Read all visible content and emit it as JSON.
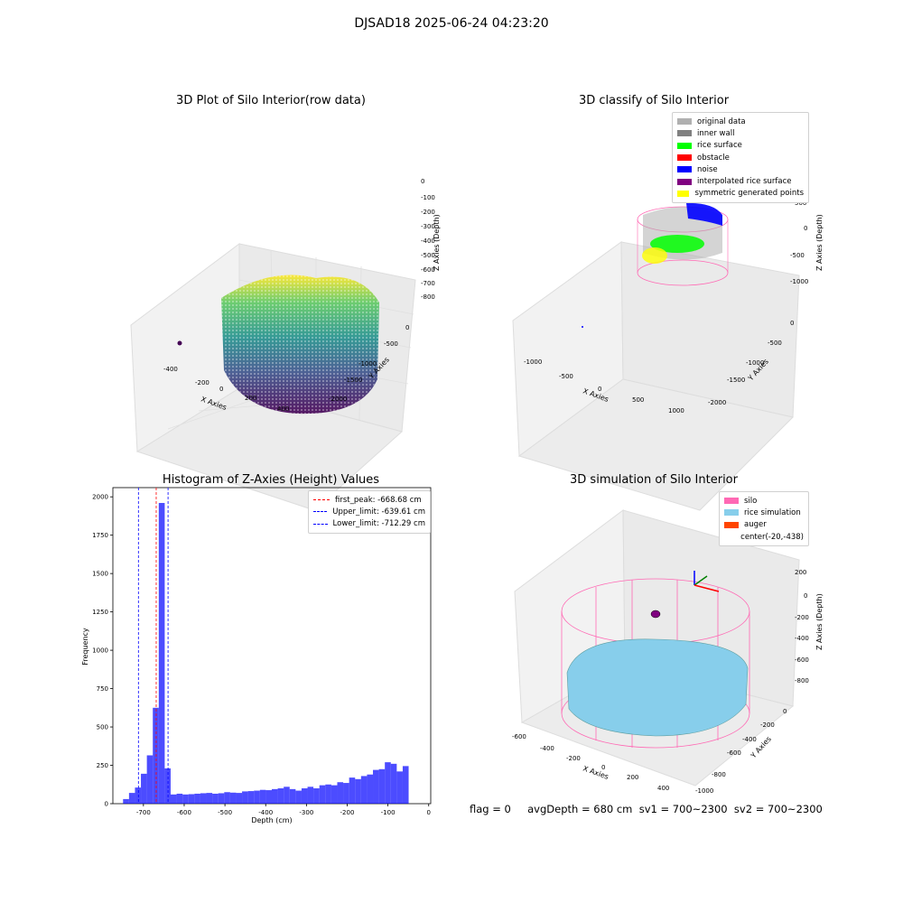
{
  "suptitle": "DJSAD18 2025-06-24 04:23:20",
  "panels": {
    "p1": {
      "title": "3D Plot of Silo Interior(row data)",
      "xlabel": "X Axies",
      "ylabel": "Y Axies",
      "zlabel": "Z Axies (Depth)",
      "xticks": [
        "-400",
        "-200",
        "0",
        "200",
        "400"
      ],
      "yticks": [
        "0",
        "-500",
        "-1000",
        "-1500",
        "-2000"
      ],
      "zticks": [
        "0",
        "-100",
        "-200",
        "-300",
        "-400",
        "-500",
        "-600",
        "-700",
        "-800"
      ]
    },
    "p2": {
      "title": "3D classify of Silo Interior",
      "xlabel": "X Axies",
      "ylabel": "Y Axies",
      "zlabel": "Z Axies (Depth)",
      "xticks": [
        "-1000",
        "-500",
        "0",
        "500",
        "1000"
      ],
      "yticks": [
        "0",
        "-500",
        "-1000",
        "-1500",
        "-2000"
      ],
      "zticks": [
        "500",
        "0",
        "-500",
        "-1000"
      ],
      "legend": [
        {
          "label": "original data",
          "color": "#b0b0b0"
        },
        {
          "label": "inner wall",
          "color": "#808080"
        },
        {
          "label": "rice surface",
          "color": "#00ff00"
        },
        {
          "label": "obstacle",
          "color": "#ff0000"
        },
        {
          "label": "noise",
          "color": "#0000ff"
        },
        {
          "label": "interpolated rice surface",
          "color": "#800080"
        },
        {
          "label": "symmetric generated points",
          "color": "#ffff00"
        }
      ]
    },
    "p4": {
      "title": "3D simulation of Silo Interior",
      "xlabel": "X Axies",
      "ylabel": "Y Axies",
      "zlabel": "Z Axies (Depth)",
      "xticks": [
        "-600",
        "-400",
        "-200",
        "0",
        "200",
        "400"
      ],
      "yticks": [
        "0",
        "-200",
        "-400",
        "-600",
        "-800",
        "-1000"
      ],
      "zticks": [
        "200",
        "0",
        "-200",
        "-400",
        "-600",
        "-800"
      ],
      "legend": [
        {
          "label": "silo",
          "color": "#ff69b4"
        },
        {
          "label": "rice simulation",
          "color": "#87ceeb"
        },
        {
          "label": "auger",
          "color": "#ff4500"
        },
        {
          "label": "center(-20,-438)",
          "color": ""
        }
      ]
    }
  },
  "flag_text": "flag = 0     avgDepth = 680 cm  sv1 = 700~2300  sv2 = 700~2300",
  "chart_data": {
    "type": "bar",
    "title": "Histogram of Z-Axies (Height) Values",
    "xlabel": "Depth (cm)",
    "ylabel": "Frequency",
    "xlim": [
      -775,
      5
    ],
    "ylim": [
      0,
      2060
    ],
    "xticks": [
      -700,
      -600,
      -500,
      -400,
      -300,
      -200,
      -100,
      0
    ],
    "yticks": [
      0,
      250,
      500,
      750,
      1000,
      1250,
      1500,
      1750,
      2000
    ],
    "bin_width": 14.6,
    "bins_start": -750,
    "values": [
      30,
      70,
      105,
      195,
      315,
      625,
      1960,
      230,
      60,
      65,
      60,
      62,
      65,
      68,
      70,
      65,
      68,
      75,
      72,
      70,
      80,
      82,
      85,
      90,
      88,
      95,
      100,
      110,
      95,
      85,
      100,
      110,
      100,
      120,
      125,
      120,
      140,
      135,
      170,
      160,
      180,
      190,
      220,
      225,
      270,
      260,
      210,
      245
    ],
    "color": "#0000ff",
    "vlines": [
      {
        "label": "first_peak: -668.68 cm",
        "x": -668.68,
        "color": "#ff0000"
      },
      {
        "label": "Upper_limit: -639.61 cm",
        "x": -639.61,
        "color": "#0000ff"
      },
      {
        "label": "Lower_limit: -712.29 cm",
        "x": -712.29,
        "color": "#0000ff"
      }
    ],
    "legend_position": "upper right"
  }
}
